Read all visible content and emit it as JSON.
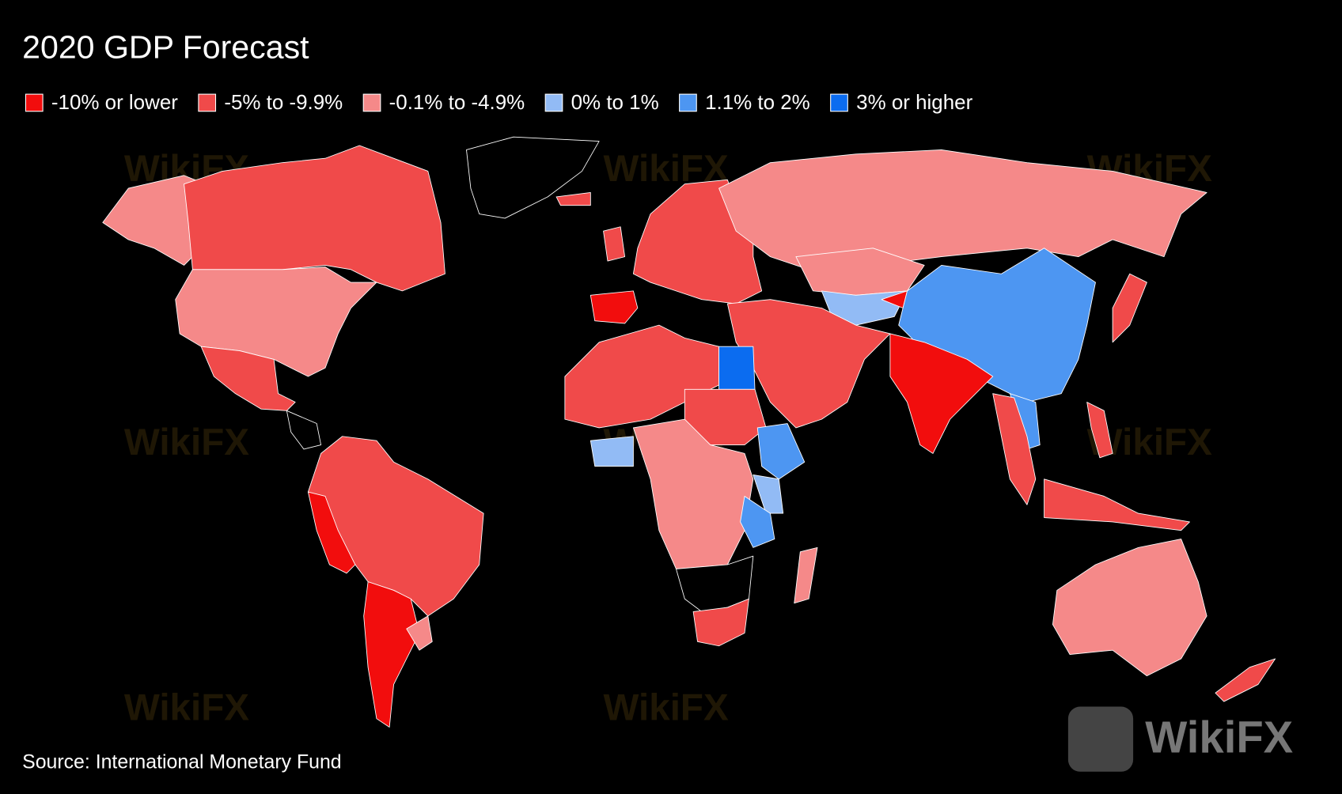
{
  "title": "2020 GDP Forecast",
  "legend": {
    "items": [
      {
        "label": "-10% or lower",
        "color": "#f20d0d"
      },
      {
        "label": "-5% to -9.9%",
        "color": "#f04a4a"
      },
      {
        "label": "-0.1% to -4.9%",
        "color": "#f58989"
      },
      {
        "label": "0% to 1%",
        "color": "#92bbf5"
      },
      {
        "label": "1.1% to 2%",
        "color": "#4d96f2"
      },
      {
        "label": "3% or higher",
        "color": "#0b6cf0"
      }
    ]
  },
  "source": "Source: International Monetary Fund",
  "watermark": "WikiFX"
}
